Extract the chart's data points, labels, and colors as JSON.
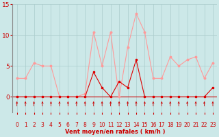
{
  "x": [
    0,
    1,
    2,
    3,
    4,
    5,
    6,
    7,
    8,
    9,
    10,
    11,
    12,
    13,
    14,
    15,
    16,
    17,
    18,
    19,
    20,
    21,
    22,
    23
  ],
  "vent_moyen": [
    0,
    0,
    0,
    0,
    0,
    0,
    0,
    0,
    0,
    4,
    1.5,
    0,
    2.5,
    1.5,
    6,
    0,
    0,
    0,
    0,
    0,
    0,
    0,
    0,
    1.5
  ],
  "rafales": [
    3,
    3,
    5.5,
    5,
    5,
    0,
    0,
    0,
    0.5,
    10.5,
    5,
    10.5,
    0,
    8,
    13.5,
    10.5,
    3,
    3,
    6.5,
    5,
    6,
    6.5,
    3,
    5.5
  ],
  "xlabel": "Vent moyen/en rafales ( km/h )",
  "ylim": [
    -2.5,
    15
  ],
  "yplot_lim": [
    0,
    15
  ],
  "yticks": [
    0,
    5,
    10,
    15
  ],
  "xticks": [
    0,
    1,
    2,
    3,
    4,
    5,
    6,
    7,
    8,
    9,
    10,
    11,
    12,
    13,
    14,
    15,
    16,
    17,
    18,
    19,
    20,
    21,
    22,
    23
  ],
  "bg_color": "#cce8e8",
  "grid_color": "#aacccc",
  "line_color_moyen": "#dd0000",
  "line_color_rafales": "#ff9999",
  "marker_color_moyen": "#dd0000",
  "marker_color_rafales": "#ff9999",
  "tick_color": "#cc0000",
  "label_color": "#cc0000",
  "spine_color": "#888888",
  "bottom_line_color": "#cc0000"
}
